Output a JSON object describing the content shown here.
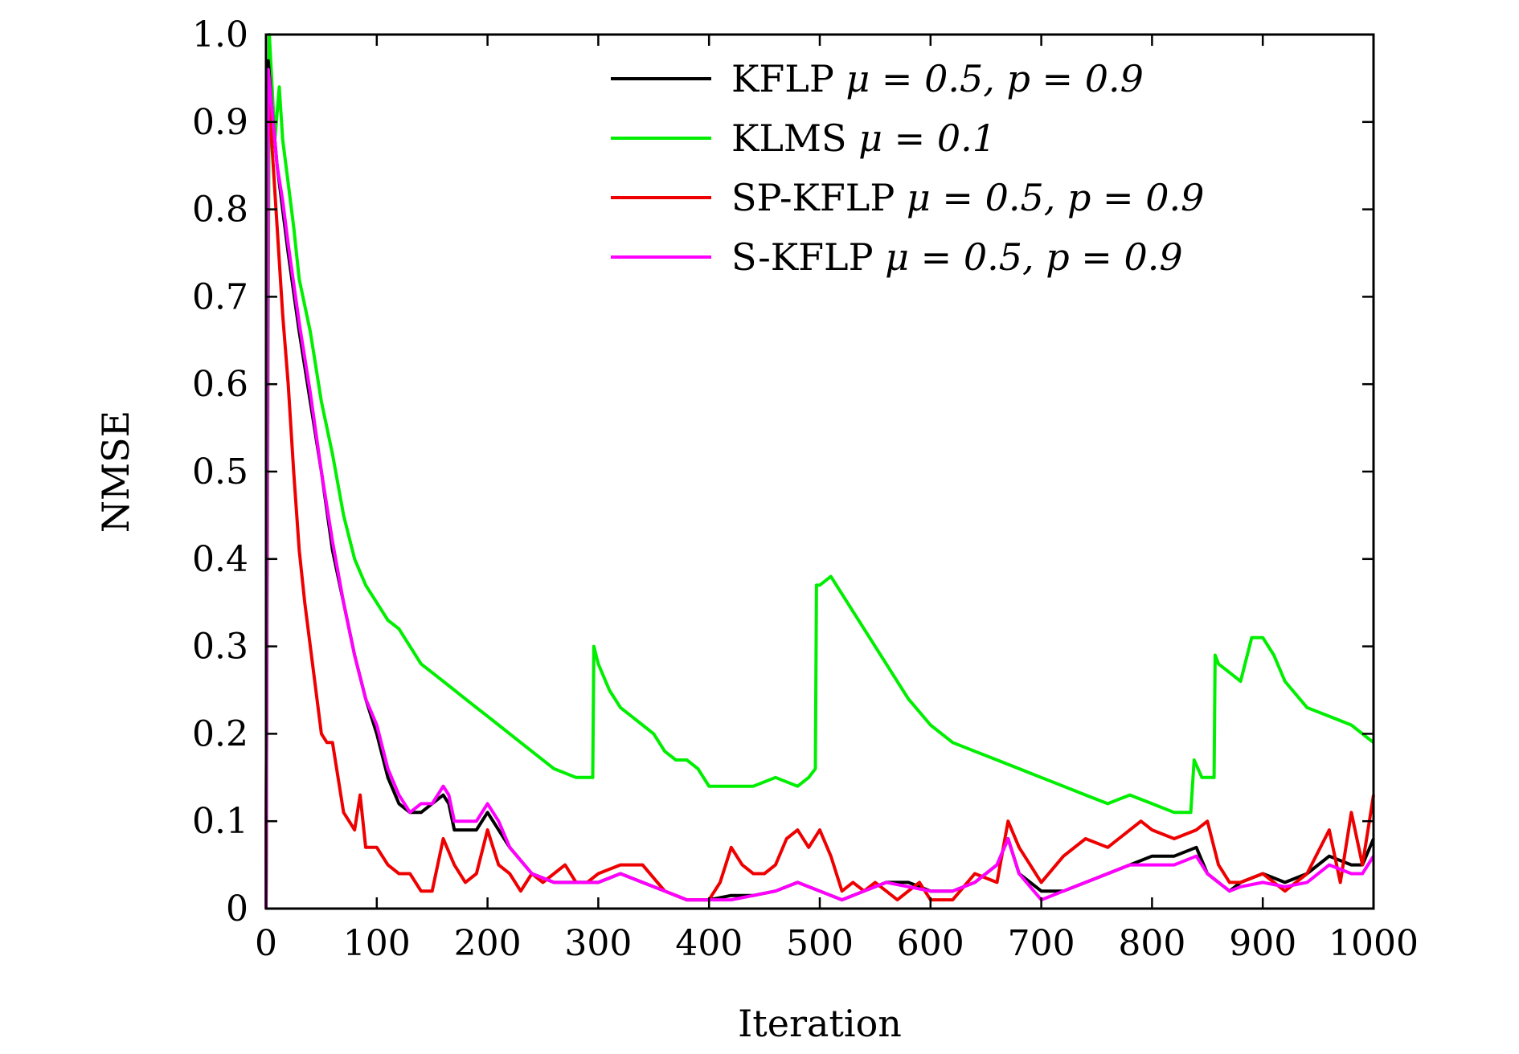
{
  "chart_data": {
    "type": "line",
    "xlabel": "Iteration",
    "ylabel": "NMSE",
    "xlim": [
      0,
      1000
    ],
    "ylim": [
      0,
      1.0
    ],
    "x_ticks": [
      0,
      100,
      200,
      300,
      400,
      500,
      600,
      700,
      800,
      900,
      1000
    ],
    "x_tick_labels": [
      "0",
      "100",
      "200",
      "300",
      "400",
      "500",
      "600",
      "700",
      "800",
      "900",
      "1000"
    ],
    "y_ticks": [
      0,
      0.1,
      0.2,
      0.3,
      0.4,
      0.5,
      0.6,
      0.7,
      0.8,
      0.9,
      1.0
    ],
    "y_tick_labels": [
      "0",
      "0.1",
      "0.2",
      "0.3",
      "0.4",
      "0.5",
      "0.6",
      "0.7",
      "0.8",
      "0.9",
      "1.0"
    ],
    "grid": false,
    "legend_position": "top-right",
    "series": [
      {
        "name": "KFLP",
        "name_math": "μ = 0.5, p = 0.9",
        "color": "#000000",
        "x": [
          0,
          2,
          5,
          10,
          15,
          20,
          30,
          40,
          50,
          60,
          70,
          80,
          90,
          100,
          110,
          120,
          130,
          140,
          150,
          160,
          165,
          170,
          180,
          190,
          200,
          210,
          220,
          240,
          260,
          280,
          300,
          320,
          340,
          360,
          380,
          400,
          420,
          440,
          460,
          480,
          500,
          520,
          540,
          560,
          580,
          600,
          620,
          640,
          660,
          670,
          680,
          700,
          720,
          740,
          760,
          780,
          800,
          820,
          840,
          850,
          860,
          870,
          880,
          900,
          920,
          940,
          960,
          980,
          990,
          1000
        ],
        "y": [
          0.0,
          0.97,
          0.92,
          0.85,
          0.8,
          0.75,
          0.66,
          0.58,
          0.5,
          0.41,
          0.35,
          0.29,
          0.24,
          0.2,
          0.15,
          0.12,
          0.11,
          0.11,
          0.12,
          0.13,
          0.12,
          0.09,
          0.09,
          0.09,
          0.11,
          0.09,
          0.07,
          0.04,
          0.03,
          0.03,
          0.03,
          0.04,
          0.03,
          0.02,
          0.01,
          0.01,
          0.015,
          0.015,
          0.02,
          0.03,
          0.02,
          0.01,
          0.02,
          0.03,
          0.03,
          0.02,
          0.02,
          0.03,
          0.05,
          0.08,
          0.04,
          0.02,
          0.02,
          0.03,
          0.04,
          0.05,
          0.06,
          0.06,
          0.07,
          0.04,
          0.03,
          0.02,
          0.03,
          0.04,
          0.03,
          0.04,
          0.06,
          0.05,
          0.05,
          0.08
        ]
      },
      {
        "name": "KLMS",
        "name_math": "μ = 0.1",
        "color": "#00ee00",
        "x": [
          0,
          3,
          8,
          12,
          15,
          20,
          25,
          30,
          40,
          50,
          60,
          70,
          80,
          90,
          100,
          110,
          120,
          130,
          140,
          150,
          160,
          170,
          180,
          190,
          200,
          210,
          220,
          240,
          260,
          280,
          295,
          296,
          300,
          310,
          320,
          330,
          340,
          350,
          360,
          370,
          380,
          390,
          400,
          420,
          440,
          460,
          480,
          490,
          496,
          497,
          500,
          510,
          520,
          530,
          540,
          560,
          580,
          600,
          620,
          640,
          660,
          680,
          700,
          720,
          740,
          760,
          780,
          800,
          820,
          835,
          838,
          845,
          850,
          856,
          857,
          860,
          870,
          880,
          890,
          900,
          910,
          920,
          940,
          960,
          980,
          990,
          1000
        ],
        "y": [
          0.0,
          1.0,
          0.88,
          0.94,
          0.88,
          0.83,
          0.78,
          0.72,
          0.66,
          0.58,
          0.52,
          0.45,
          0.4,
          0.37,
          0.35,
          0.33,
          0.32,
          0.3,
          0.28,
          0.27,
          0.26,
          0.25,
          0.24,
          0.23,
          0.22,
          0.21,
          0.2,
          0.18,
          0.16,
          0.15,
          0.15,
          0.3,
          0.28,
          0.25,
          0.23,
          0.22,
          0.21,
          0.2,
          0.18,
          0.17,
          0.17,
          0.16,
          0.14,
          0.14,
          0.14,
          0.15,
          0.14,
          0.15,
          0.16,
          0.37,
          0.37,
          0.38,
          0.36,
          0.34,
          0.32,
          0.28,
          0.24,
          0.21,
          0.19,
          0.18,
          0.17,
          0.16,
          0.15,
          0.14,
          0.13,
          0.12,
          0.13,
          0.12,
          0.11,
          0.11,
          0.17,
          0.15,
          0.15,
          0.15,
          0.29,
          0.28,
          0.27,
          0.26,
          0.31,
          0.31,
          0.29,
          0.26,
          0.23,
          0.22,
          0.21,
          0.2,
          0.19
        ]
      },
      {
        "name": "SP-KFLP",
        "name_math": "μ = 0.5, p = 0.9",
        "color": "#ee0000",
        "x": [
          0,
          2,
          5,
          10,
          15,
          20,
          25,
          30,
          35,
          40,
          45,
          50,
          55,
          60,
          65,
          70,
          75,
          80,
          85,
          90,
          100,
          110,
          120,
          130,
          140,
          150,
          160,
          170,
          180,
          190,
          200,
          210,
          220,
          230,
          240,
          250,
          260,
          270,
          280,
          290,
          300,
          320,
          340,
          360,
          380,
          400,
          410,
          420,
          430,
          440,
          450,
          460,
          470,
          480,
          490,
          500,
          510,
          520,
          530,
          540,
          550,
          560,
          570,
          580,
          590,
          600,
          620,
          640,
          660,
          670,
          680,
          690,
          700,
          720,
          740,
          760,
          780,
          790,
          800,
          820,
          840,
          850,
          860,
          870,
          880,
          900,
          920,
          940,
          960,
          970,
          980,
          990,
          1000
        ],
        "y": [
          0.0,
          0.95,
          0.88,
          0.78,
          0.68,
          0.6,
          0.5,
          0.41,
          0.35,
          0.3,
          0.25,
          0.2,
          0.19,
          0.19,
          0.15,
          0.11,
          0.1,
          0.09,
          0.13,
          0.07,
          0.07,
          0.05,
          0.04,
          0.04,
          0.02,
          0.02,
          0.08,
          0.05,
          0.03,
          0.04,
          0.09,
          0.05,
          0.04,
          0.02,
          0.04,
          0.03,
          0.04,
          0.05,
          0.03,
          0.03,
          0.04,
          0.05,
          0.05,
          0.02,
          0.01,
          0.01,
          0.03,
          0.07,
          0.05,
          0.04,
          0.04,
          0.05,
          0.08,
          0.09,
          0.07,
          0.09,
          0.06,
          0.02,
          0.03,
          0.02,
          0.03,
          0.02,
          0.01,
          0.02,
          0.03,
          0.01,
          0.01,
          0.04,
          0.03,
          0.1,
          0.07,
          0.05,
          0.03,
          0.06,
          0.08,
          0.07,
          0.09,
          0.1,
          0.09,
          0.08,
          0.09,
          0.1,
          0.05,
          0.03,
          0.03,
          0.04,
          0.02,
          0.04,
          0.09,
          0.03,
          0.11,
          0.05,
          0.13
        ]
      },
      {
        "name": "S-KFLP",
        "name_math": "μ = 0.5, p = 0.9",
        "color": "#ff00ff",
        "x": [
          0,
          2,
          5,
          10,
          15,
          20,
          30,
          40,
          50,
          60,
          70,
          80,
          90,
          100,
          110,
          120,
          130,
          140,
          150,
          160,
          165,
          170,
          180,
          190,
          200,
          210,
          220,
          240,
          260,
          280,
          300,
          320,
          340,
          360,
          380,
          400,
          420,
          440,
          460,
          480,
          500,
          520,
          540,
          560,
          580,
          600,
          620,
          640,
          660,
          670,
          680,
          700,
          720,
          740,
          760,
          780,
          800,
          820,
          840,
          850,
          860,
          870,
          880,
          900,
          920,
          940,
          960,
          980,
          990,
          1000
        ],
        "y": [
          0.0,
          0.96,
          0.92,
          0.85,
          0.81,
          0.76,
          0.67,
          0.59,
          0.5,
          0.42,
          0.35,
          0.29,
          0.24,
          0.21,
          0.16,
          0.13,
          0.11,
          0.12,
          0.12,
          0.14,
          0.13,
          0.1,
          0.1,
          0.1,
          0.12,
          0.1,
          0.07,
          0.04,
          0.03,
          0.03,
          0.03,
          0.04,
          0.03,
          0.02,
          0.01,
          0.01,
          0.01,
          0.015,
          0.02,
          0.03,
          0.02,
          0.01,
          0.02,
          0.03,
          0.025,
          0.02,
          0.02,
          0.03,
          0.05,
          0.08,
          0.04,
          0.01,
          0.02,
          0.03,
          0.04,
          0.05,
          0.05,
          0.05,
          0.06,
          0.04,
          0.03,
          0.02,
          0.025,
          0.03,
          0.025,
          0.03,
          0.05,
          0.04,
          0.04,
          0.06
        ]
      }
    ]
  }
}
